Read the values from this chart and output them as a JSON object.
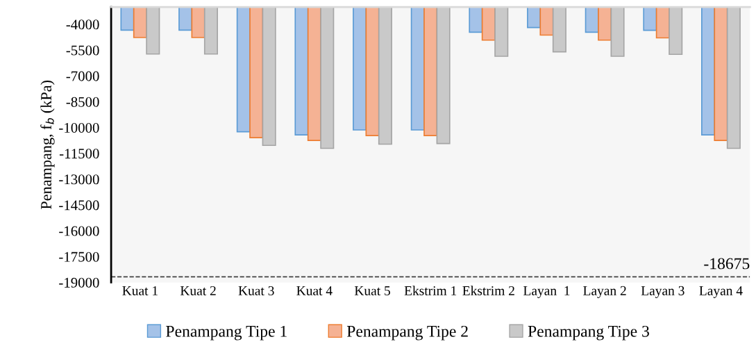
{
  "chart_data": {
    "type": "bar",
    "ylabel": "Penampang, f$_{b}$ (kPa)",
    "categories": [
      "Kuat 1",
      "Kuat 2",
      "Kuat 3",
      "Kuat 4",
      "Kuat 5",
      "Ekstrim 1",
      "Ekstrim 2",
      "Layan  1",
      "Layan 2",
      "Layan 3",
      "Layan 4"
    ],
    "series": [
      {
        "name": "Penampang Tipe 1",
        "color": "#a4c2e8",
        "values": [
          -4340,
          -4340,
          -10250,
          -10430,
          -10140,
          -10140,
          -4460,
          -4190,
          -4460,
          -4350,
          -10430
        ]
      },
      {
        "name": "Penampang Tipe 2",
        "color": "#f5b294",
        "values": [
          -4770,
          -4770,
          -10590,
          -10750,
          -10470,
          -10470,
          -4920,
          -4630,
          -4920,
          -4790,
          -10750
        ]
      },
      {
        "name": "Penampang Tipe 3",
        "color": "#c9c9c9",
        "values": [
          -5730,
          -5730,
          -11040,
          -11210,
          -10970,
          -10930,
          -5860,
          -5600,
          -5860,
          -5750,
          -11210
        ]
      }
    ],
    "ylim": [
      -19000,
      -3000
    ],
    "yticks": [
      -4000,
      -5500,
      -7000,
      -8500,
      -10000,
      -11500,
      -13000,
      -14500,
      -16000,
      -17500,
      -19000
    ],
    "ref_lines": [
      {
        "axis": "y",
        "value": -18675,
        "label": "-18675",
        "color": "#404040",
        "line_style": "dashed"
      }
    ],
    "grid": false,
    "legend": "bottom"
  }
}
